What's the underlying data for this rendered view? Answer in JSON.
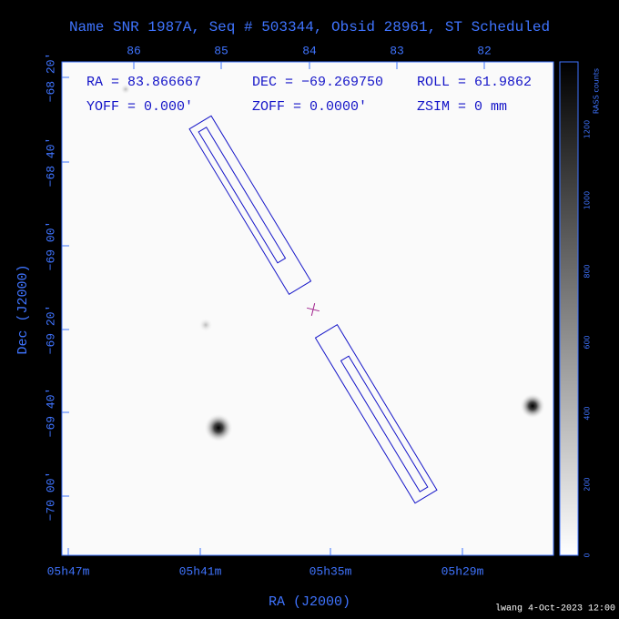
{
  "title": "Name SNR 1987A, Seq # 503344, Obsid 28961, ST Scheduled",
  "info": [
    "RA = 83.866667",
    "DEC = −69.269750",
    "ROLL = 61.9862",
    "YOFF =    0.000′",
    "ZOFF =   0.0000′",
    "ZSIM = 0 mm"
  ],
  "top_ticks": [
    "86",
    "85",
    "84",
    "83",
    "82"
  ],
  "left_ticks": [
    "−68 20′",
    "−68 40′",
    "−69 00′",
    "−69 20′",
    "−69 40′",
    "−70 00′"
  ],
  "bottom_ticks": [
    "05h47m",
    "05h41m",
    "05h35m",
    "05h29m"
  ],
  "x_label": "RA (J2000)",
  "y_label": "Dec (J2000)",
  "colorbar": {
    "label": "RASS counts",
    "ticks": [
      "0",
      "200",
      "400",
      "600",
      "800",
      "1000",
      "1200"
    ]
  },
  "footer": "lwang  4-Oct-2023 12:00"
}
